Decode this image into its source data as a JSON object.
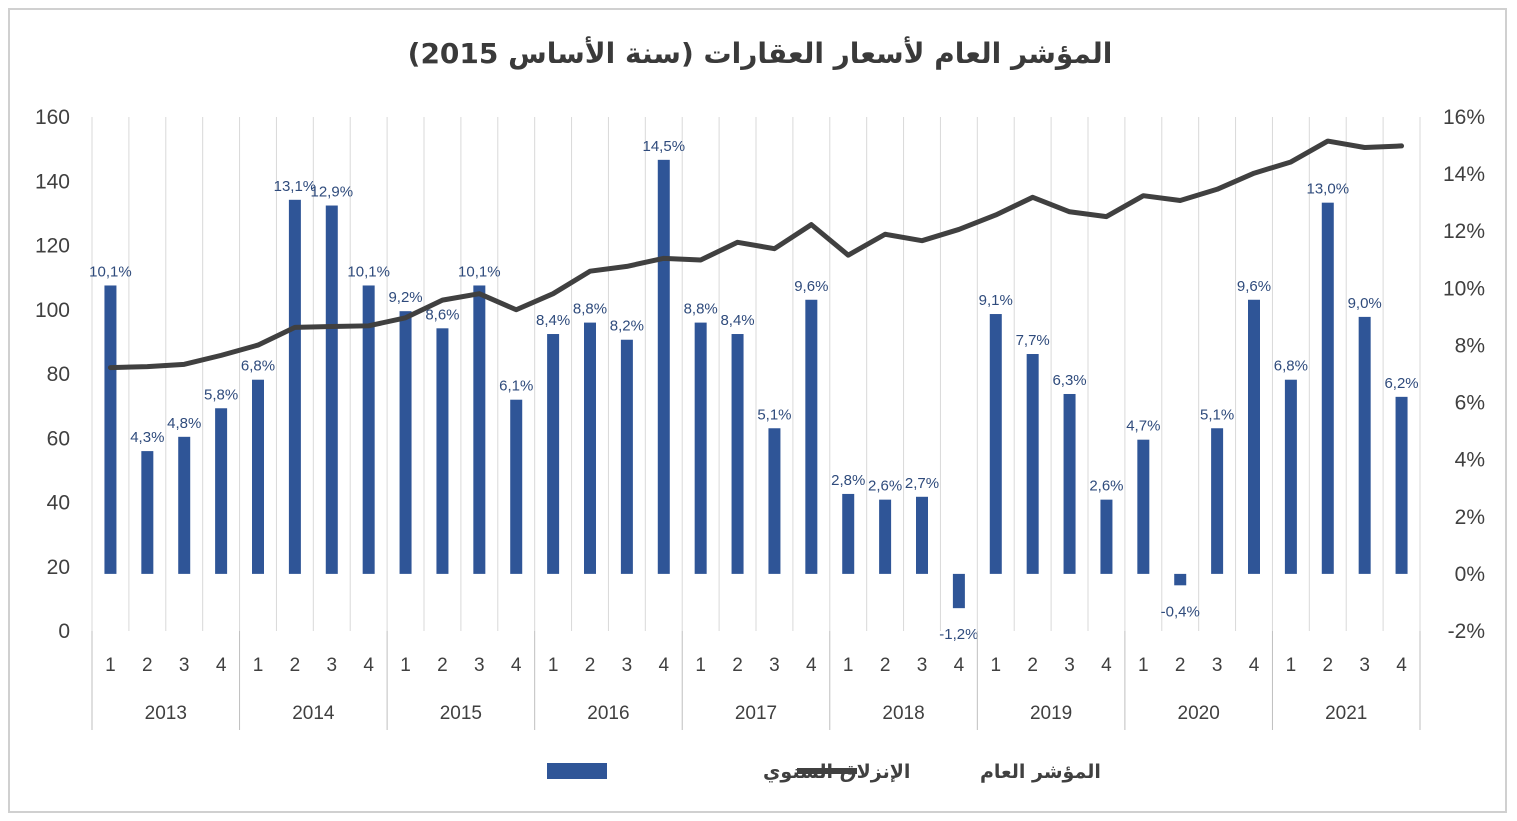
{
  "chart_data": {
    "type": "bar",
    "title": "المؤشر العام لأسعار العقارات (سنة الأساس 2015)",
    "colors": {
      "bars": "#2f5597",
      "line": "#404040",
      "labels": "#2f4b7c",
      "grid": "#d9d9d9"
    },
    "y_left": {
      "range": [
        0,
        160
      ],
      "ticks": [
        "0",
        "20",
        "40",
        "60",
        "80",
        "100",
        "120",
        "140",
        "160"
      ]
    },
    "y_right": {
      "range": [
        -2,
        16
      ],
      "ticks": [
        "-2%",
        "0%",
        "2%",
        "4%",
        "6%",
        "8%",
        "10%",
        "12%",
        "14%",
        "16%"
      ]
    },
    "years": [
      "2013",
      "2014",
      "2015",
      "2016",
      "2017",
      "2018",
      "2019",
      "2020",
      "2021"
    ],
    "quarters": [
      "1",
      "2",
      "3",
      "4"
    ],
    "series": [
      {
        "name": "الإنزلاق السنوي",
        "type": "bar",
        "axis": "right",
        "values": [
          10.1,
          4.3,
          4.8,
          5.8,
          6.8,
          13.1,
          12.9,
          10.1,
          9.2,
          8.6,
          10.1,
          6.1,
          8.4,
          8.8,
          8.2,
          14.5,
          8.8,
          8.4,
          5.1,
          9.6,
          2.8,
          2.6,
          2.7,
          -1.2,
          9.1,
          7.7,
          6.3,
          2.6,
          4.7,
          -0.4,
          5.1,
          9.6,
          6.8,
          13.0,
          9.0,
          6.2
        ],
        "labels": [
          "10,1%",
          "4,3%",
          "4,8%",
          "5,8%",
          "6,8%",
          "13,1%",
          "12,9%",
          "10,1%",
          "9,2%",
          "8,6%",
          "10,1%",
          "6,1%",
          "8,4%",
          "8,8%",
          "8,2%",
          "14,5%",
          "8,8%",
          "8,4%",
          "5,1%",
          "9,6%",
          "2,8%",
          "2,6%",
          "2,7%",
          "-1,2%",
          "9,1%",
          "7,7%",
          "6,3%",
          "2,6%",
          "4,7%",
          "-0,4%",
          "5,1%",
          "9,6%",
          "6,8%",
          "13,0%",
          "9,0%",
          "6,2%"
        ]
      },
      {
        "name": "المؤشر العام",
        "type": "line",
        "axis": "left",
        "values": [
          82,
          82.3,
          83,
          85.8,
          89,
          94.5,
          94.8,
          95,
          97.5,
          103,
          105,
          100,
          105,
          112,
          113.5,
          116,
          115.5,
          121,
          119,
          126.5,
          117,
          123.5,
          121.5,
          125,
          129.5,
          135,
          130.5,
          129,
          135.5,
          134,
          137.5,
          142.5,
          146,
          152.5,
          150.5,
          151
        ]
      }
    ],
    "grid": "vertical between categories",
    "legend_position": "bottom"
  }
}
